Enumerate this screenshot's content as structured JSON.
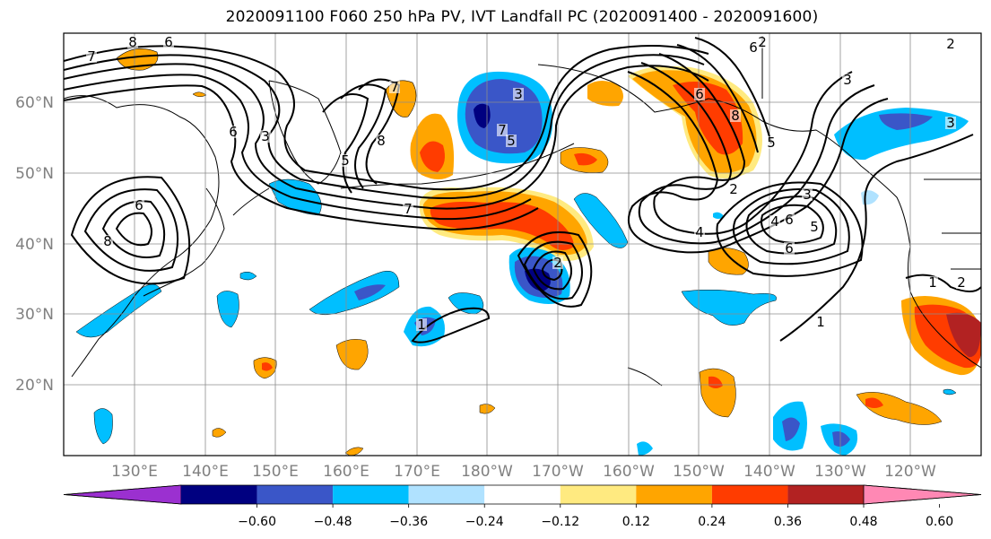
{
  "title": "2020091100 F060 250 hPa PV, IVT Landfall PC (2020091400 - 2020091600)",
  "lon_ticks": [
    "130°E",
    "140°E",
    "150°E",
    "160°E",
    "170°E",
    "180°W",
    "170°W",
    "160°W",
    "150°W",
    "140°W",
    "130°W",
    "120°W"
  ],
  "lat_ticks": [
    "60°N",
    "50°N",
    "40°N",
    "30°N",
    "20°N"
  ],
  "colorbar": {
    "labels": [
      "-0.60",
      "-0.48",
      "-0.36",
      "-0.24",
      "-0.12",
      "0.12",
      "0.24",
      "0.36",
      "0.48",
      "0.60"
    ],
    "colors": [
      "#9b30d0",
      "#000080",
      "#3a56c8",
      "#00bfff",
      "#b0e2ff",
      "#ffffff",
      "#ffea80",
      "#ffa500",
      "#ff3c00",
      "#b22222",
      "#ff88b4"
    ]
  },
  "contour_labels": [
    "8",
    "6",
    "7",
    "6",
    "3",
    "8",
    "6",
    "5",
    "8",
    "7",
    "7",
    "3",
    "7",
    "6",
    "8",
    "6",
    "5",
    "3",
    "2",
    "2",
    "3",
    "4",
    "6",
    "5",
    "4",
    "6",
    "2",
    "1",
    "5",
    "3",
    "1",
    "2",
    "1",
    "2"
  ],
  "fill_colors": {
    "light_blue": "#b0e2ff",
    "cyan": "#00bfff",
    "blue": "#3a56c8",
    "navy": "#000080",
    "yellow": "#ffea80",
    "orange": "#ffa500",
    "red_orange": "#ff3c00",
    "dark_red": "#b22222"
  }
}
